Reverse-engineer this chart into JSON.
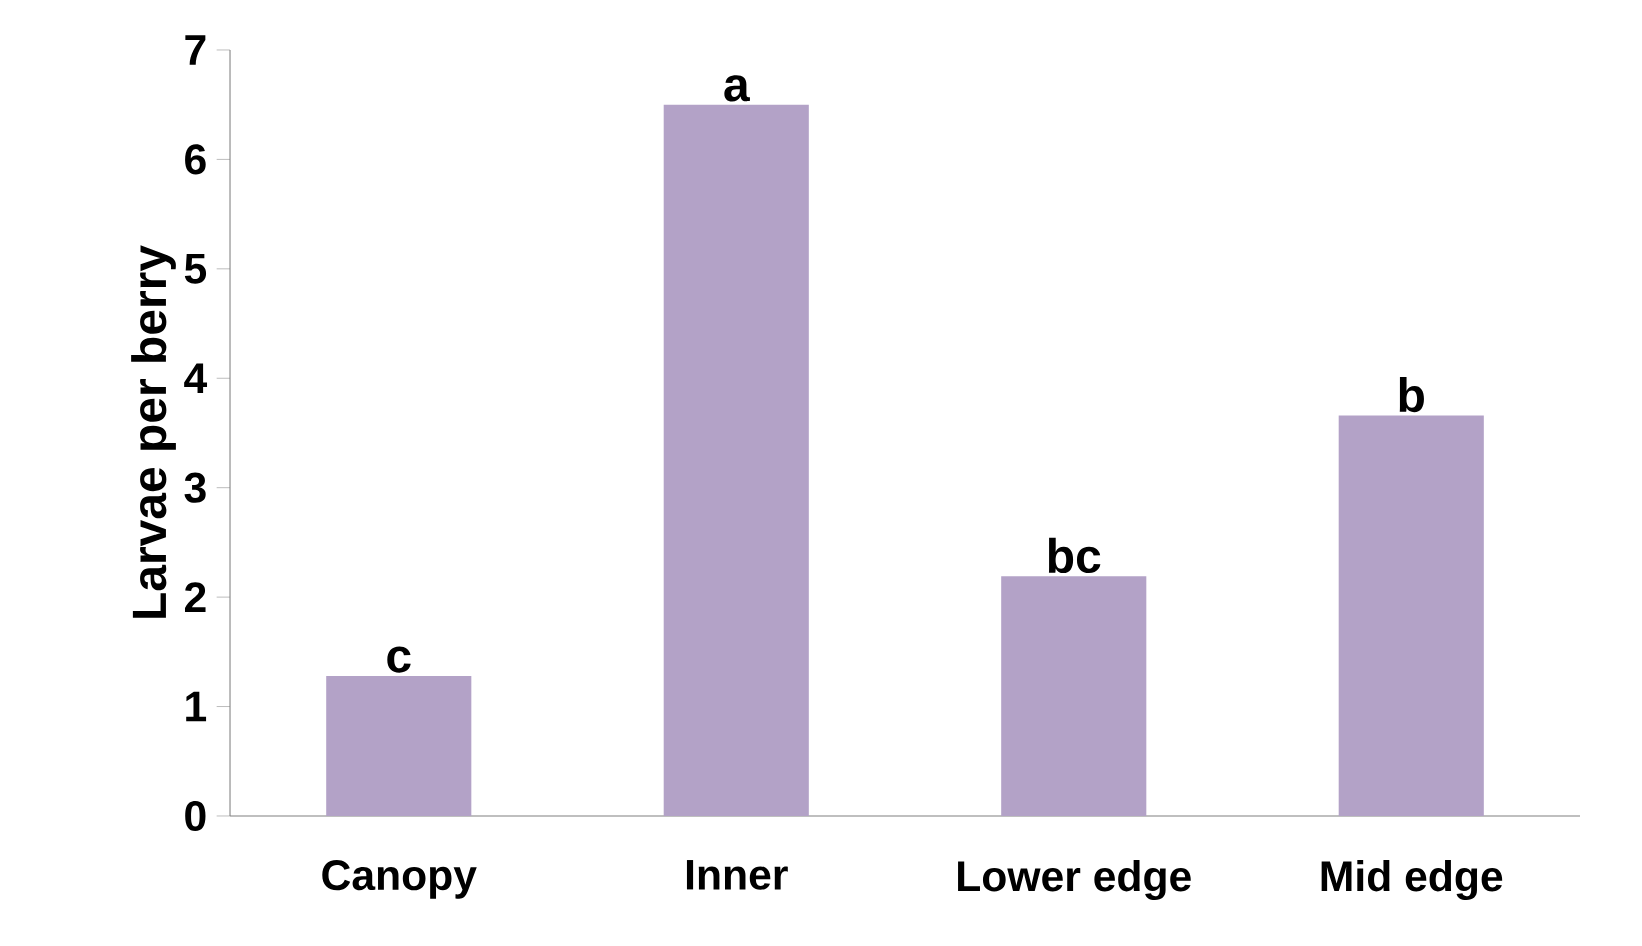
{
  "chart_data": {
    "type": "bar",
    "ylabel": "Larvae per berry",
    "categories": [
      "Canopy",
      "Inner",
      "Lower edge",
      "Mid edge"
    ],
    "values": [
      1.28,
      6.5,
      2.19,
      3.66
    ],
    "color": "#b3a2c7",
    "ylim": [
      0,
      7
    ],
    "yticks": [
      0,
      1,
      2,
      3,
      4,
      5,
      6,
      7
    ],
    "annotations": [
      {
        "text": "c",
        "x": "Canopy",
        "y": 1.28
      },
      {
        "text": "a",
        "x": "Inner",
        "y": 6.5
      },
      {
        "text": "bc",
        "x": "Lower edge",
        "y": 2.19
      },
      {
        "text": "b",
        "x": "Mid edge",
        "y": 3.66
      }
    ]
  }
}
